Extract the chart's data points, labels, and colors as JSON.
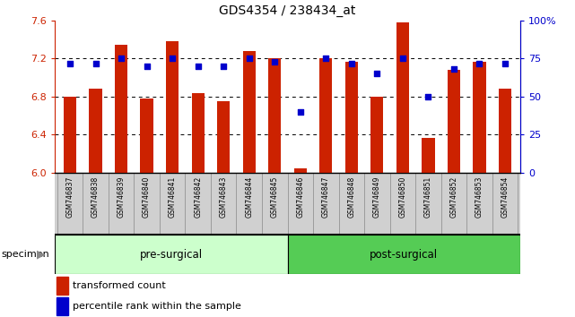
{
  "title": "GDS4354 / 238434_at",
  "samples": [
    "GSM746837",
    "GSM746838",
    "GSM746839",
    "GSM746840",
    "GSM746841",
    "GSM746842",
    "GSM746843",
    "GSM746844",
    "GSM746845",
    "GSM746846",
    "GSM746847",
    "GSM746848",
    "GSM746849",
    "GSM746850",
    "GSM746851",
    "GSM746852",
    "GSM746853",
    "GSM746854"
  ],
  "bar_values": [
    6.8,
    6.88,
    7.35,
    6.78,
    7.38,
    6.84,
    6.75,
    7.28,
    7.2,
    6.05,
    7.2,
    7.17,
    6.8,
    7.58,
    6.37,
    7.08,
    7.17,
    6.88
  ],
  "percentile_values": [
    72,
    72,
    75,
    70,
    75,
    70,
    70,
    75,
    73,
    40,
    75,
    72,
    65,
    75,
    50,
    68,
    72,
    72
  ],
  "ylim_left": [
    6.0,
    7.6
  ],
  "ylim_right": [
    0,
    100
  ],
  "yticks_left": [
    6.0,
    6.4,
    6.8,
    7.2,
    7.6
  ],
  "yticks_right": [
    0,
    25,
    50,
    75,
    100
  ],
  "bar_color": "#cc2200",
  "dot_color": "#0000cc",
  "bar_width": 0.5,
  "pre_surgical_count": 9,
  "post_surgical_count": 9,
  "pre_surgical_label": "pre-surgical",
  "post_surgical_label": "post-surgical",
  "specimen_label": "specimen",
  "legend_bar_label": "transformed count",
  "legend_dot_label": "percentile rank within the sample",
  "bg_color_pre": "#ccffcc",
  "bg_color_post": "#55cc55",
  "xtick_bg_color": "#d0d0d0",
  "cell_edge_color": "#888888"
}
